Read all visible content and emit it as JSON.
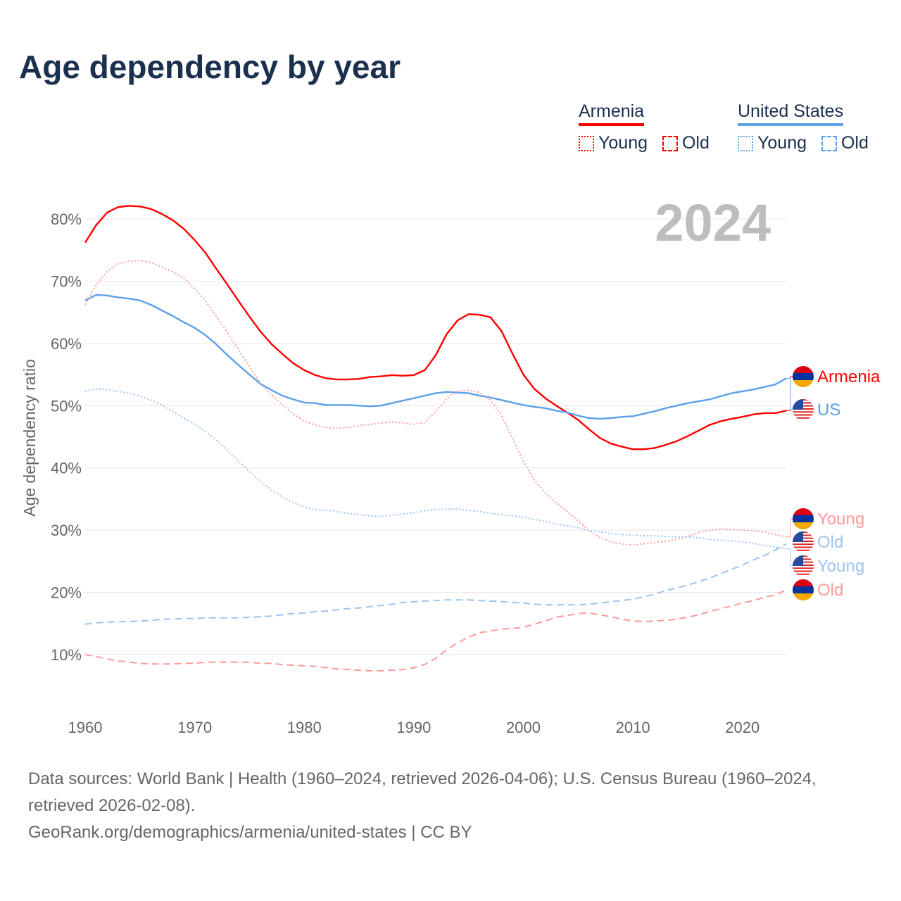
{
  "title": "Age dependency by year",
  "legend": {
    "groups": [
      {
        "name": "Armenia",
        "color": "#ff0000",
        "items": [
          {
            "label": "Young",
            "style": "dotted"
          },
          {
            "label": "Old",
            "style": "dashed"
          }
        ]
      },
      {
        "name": "United States",
        "color": "#5ca0e8",
        "items": [
          {
            "label": "Young",
            "style": "dotted"
          },
          {
            "label": "Old",
            "style": "dashed"
          }
        ]
      }
    ]
  },
  "year_watermark": "2024",
  "footer": {
    "sources": "Data sources: World Bank | Health (1960–2024, retrieved 2026-04-06); U.S. Census Bureau (1960–2024, retrieved 2026-02-08).",
    "credit": "GeoRank.org/demographics/armenia/united-states | CC BY"
  },
  "chart_data": {
    "type": "line",
    "title": "Age dependency by year",
    "xlabel": "",
    "ylabel": "Age dependency ratio",
    "xlim": [
      1960,
      2024
    ],
    "ylim": [
      3,
      87
    ],
    "x_ticks": [
      1960,
      1970,
      1980,
      1990,
      2000,
      2010,
      2020
    ],
    "y_ticks": [
      10,
      20,
      30,
      40,
      50,
      60,
      70,
      80
    ],
    "y_tick_labels": [
      "10%",
      "20%",
      "30%",
      "40%",
      "50%",
      "60%",
      "70%",
      "80%"
    ],
    "grid": true,
    "legend_position": "top-right",
    "x_start": 1960,
    "series": [
      {
        "name": "Armenia",
        "end_label": "Armenia",
        "flag": "armenia",
        "color": "#ff0000",
        "dash": "solid",
        "values": [
          76.2,
          79.0,
          81.0,
          81.9,
          82.1,
          82.0,
          81.6,
          80.8,
          79.8,
          78.4,
          76.6,
          74.5,
          71.9,
          69.4,
          66.8,
          64.3,
          61.9,
          59.9,
          58.3,
          56.8,
          55.7,
          54.9,
          54.4,
          54.2,
          54.2,
          54.3,
          54.6,
          54.7,
          54.9,
          54.8,
          54.9,
          55.7,
          58.1,
          61.5,
          63.7,
          64.7,
          64.6,
          64.2,
          62.0,
          58.4,
          55.0,
          52.7,
          51.2,
          50.0,
          48.9,
          47.7,
          46.2,
          44.8,
          43.9,
          43.4,
          43.0,
          43.0,
          43.2,
          43.7,
          44.3,
          45.1,
          46.0,
          46.9,
          47.5,
          47.9,
          48.2,
          48.6,
          48.8,
          48.8,
          49.2
        ]
      },
      {
        "name": "United States",
        "end_label": "US",
        "flag": "us",
        "color": "#5ca0e8",
        "dash": "solid",
        "values": [
          66.9,
          67.8,
          67.7,
          67.4,
          67.2,
          66.9,
          66.2,
          65.3,
          64.4,
          63.4,
          62.5,
          61.3,
          59.8,
          58.1,
          56.5,
          55.0,
          53.5,
          52.5,
          51.6,
          51.0,
          50.5,
          50.4,
          50.1,
          50.1,
          50.1,
          50.0,
          49.9,
          50.0,
          50.4,
          50.8,
          51.2,
          51.6,
          52.0,
          52.2,
          52.1,
          52.0,
          51.6,
          51.3,
          50.9,
          50.5,
          50.1,
          49.8,
          49.6,
          49.2,
          48.9,
          48.4,
          48.0,
          47.9,
          48.0,
          48.2,
          48.3,
          48.7,
          49.1,
          49.6,
          50.0,
          50.4,
          50.7,
          51.0,
          51.5,
          52.0,
          52.3,
          52.6,
          53.0,
          53.4,
          54.4
        ]
      },
      {
        "name": "Armenia Young",
        "end_label": "Young",
        "flag": "armenia",
        "color": "#ff9a9a",
        "dash": "dotted",
        "values": [
          66.2,
          69.4,
          71.6,
          72.8,
          73.2,
          73.3,
          73.0,
          72.3,
          71.5,
          70.5,
          68.8,
          66.8,
          64.3,
          61.7,
          59.0,
          56.3,
          53.5,
          51.7,
          50.1,
          48.7,
          47.5,
          46.9,
          46.5,
          46.4,
          46.5,
          46.8,
          47.0,
          47.2,
          47.4,
          47.2,
          47.0,
          47.3,
          49.0,
          51.2,
          52.3,
          52.5,
          52.1,
          50.9,
          48.4,
          44.8,
          41.1,
          38.0,
          36.0,
          34.4,
          33.0,
          31.5,
          29.9,
          28.8,
          28.1,
          27.8,
          27.6,
          27.8,
          28.0,
          28.2,
          28.5,
          29.0,
          29.6,
          30.0,
          30.2,
          30.1,
          30.0,
          29.9,
          29.7,
          29.3,
          28.9
        ]
      },
      {
        "name": "United States Old",
        "end_label": "Old",
        "flag": "us",
        "color": "#9cc4f0",
        "dash": "dashed",
        "values": [
          14.9,
          15.1,
          15.2,
          15.3,
          15.3,
          15.4,
          15.5,
          15.7,
          15.7,
          15.8,
          15.8,
          15.9,
          15.9,
          15.9,
          15.9,
          16.0,
          16.1,
          16.2,
          16.4,
          16.6,
          16.7,
          16.9,
          17.0,
          17.2,
          17.4,
          17.5,
          17.7,
          17.9,
          18.1,
          18.4,
          18.5,
          18.6,
          18.7,
          18.8,
          18.8,
          18.8,
          18.7,
          18.6,
          18.5,
          18.4,
          18.3,
          18.1,
          18.0,
          18.0,
          18.0,
          18.0,
          18.1,
          18.3,
          18.5,
          18.7,
          18.9,
          19.3,
          19.7,
          20.3,
          20.7,
          21.2,
          21.7,
          22.3,
          23.0,
          23.7,
          24.4,
          25.2,
          25.9,
          26.8,
          27.8
        ]
      },
      {
        "name": "United States Young",
        "end_label": "Young",
        "flag": "us",
        "color": "#9cc4f0",
        "dash": "dotted",
        "values": [
          52.3,
          52.7,
          52.6,
          52.3,
          52.0,
          51.5,
          50.9,
          50.1,
          49.1,
          48.0,
          47.0,
          45.8,
          44.4,
          42.8,
          41.1,
          39.4,
          37.8,
          36.5,
          35.3,
          34.4,
          33.7,
          33.3,
          33.2,
          33.0,
          32.7,
          32.5,
          32.3,
          32.2,
          32.4,
          32.6,
          32.8,
          33.1,
          33.3,
          33.4,
          33.4,
          33.2,
          33.0,
          32.7,
          32.5,
          32.3,
          32.1,
          31.7,
          31.4,
          31.0,
          30.7,
          30.4,
          29.9,
          29.7,
          29.5,
          29.3,
          29.2,
          29.1,
          29.1,
          29.0,
          28.9,
          28.9,
          28.8,
          28.5,
          28.4,
          28.3,
          28.1,
          27.9,
          27.5,
          27.3,
          27.0
        ]
      },
      {
        "name": "Armenia Old",
        "end_label": "Old",
        "flag": "armenia",
        "color": "#ff9a9a",
        "dash": "dashed",
        "values": [
          10.0,
          9.7,
          9.3,
          9.0,
          8.8,
          8.6,
          8.5,
          8.5,
          8.5,
          8.6,
          8.6,
          8.8,
          8.8,
          8.8,
          8.8,
          8.8,
          8.6,
          8.6,
          8.4,
          8.3,
          8.2,
          8.1,
          7.9,
          7.7,
          7.6,
          7.5,
          7.4,
          7.4,
          7.5,
          7.6,
          7.9,
          8.4,
          9.4,
          10.8,
          11.9,
          12.8,
          13.5,
          13.8,
          14.1,
          14.2,
          14.4,
          14.9,
          15.4,
          16.0,
          16.3,
          16.6,
          16.7,
          16.4,
          16.1,
          15.7,
          15.4,
          15.3,
          15.4,
          15.5,
          15.7,
          16.0,
          16.4,
          16.9,
          17.4,
          17.8,
          18.3,
          18.7,
          19.2,
          19.6,
          20.4
        ]
      }
    ]
  }
}
